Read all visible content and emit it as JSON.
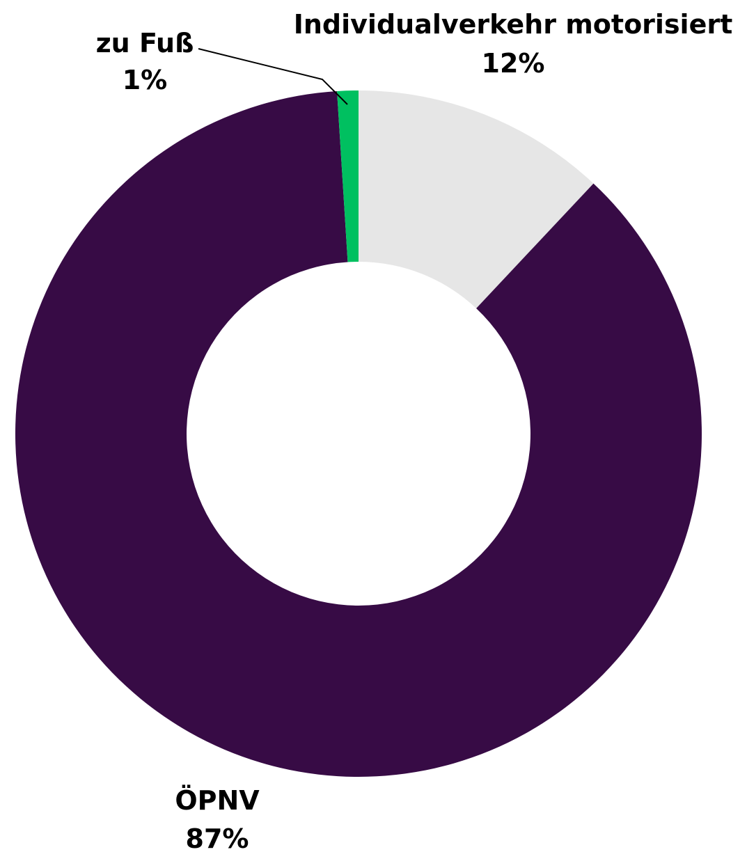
{
  "chart_data": {
    "type": "pie",
    "donut": true,
    "categories": [
      "Individualverkehr motorisiert",
      "ÖPNV",
      "zu Fuß"
    ],
    "values": [
      12,
      87,
      1
    ],
    "value_labels": [
      "12%",
      "87%",
      "1%"
    ],
    "colors": [
      "#e6e6e6",
      "#370b45",
      "#00c060"
    ],
    "title": "",
    "legend": "none"
  }
}
